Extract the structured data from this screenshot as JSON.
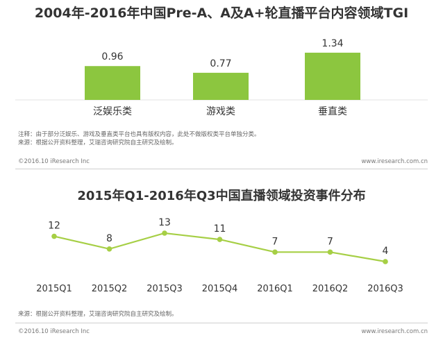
{
  "chart_data": [
    {
      "type": "bar",
      "title": "2004年-2016年中国Pre-A、A及A+轮直播平台内容领域TGI",
      "categories": [
        "泛娱乐类",
        "游戏类",
        "垂直类"
      ],
      "values": [
        0.96,
        0.77,
        1.34
      ],
      "value_labels": [
        "0.96",
        "0.77",
        "1.34"
      ],
      "color": "#8cc63f",
      "notes": [
        "注释：由于部分泛娱乐、游戏及垂直类平台也具有版权内容，此处不做版权类平台单独分类。",
        "来源：根据公开资料整理，艾瑞咨询研究院自主研究及绘制。"
      ]
    },
    {
      "type": "line",
      "title": "2015年Q1-2016年Q3中国直播领域投资事件分布",
      "categories": [
        "2015Q1",
        "2015Q2",
        "2015Q3",
        "2015Q4",
        "2016Q1",
        "2016Q2",
        "2016Q3"
      ],
      "values": [
        12,
        8,
        13,
        11,
        7,
        7,
        4
      ],
      "value_labels": [
        "12",
        "8",
        "13",
        "11",
        "7",
        "7",
        "4"
      ],
      "color": "#a6cf45",
      "notes": [
        "来源：根据公开资料整理，艾瑞咨询研究院自主研究及绘制。"
      ]
    }
  ],
  "footer": {
    "copyright": "©2016.10 iResearch Inc",
    "website": "www.iresearch.com.cn"
  }
}
